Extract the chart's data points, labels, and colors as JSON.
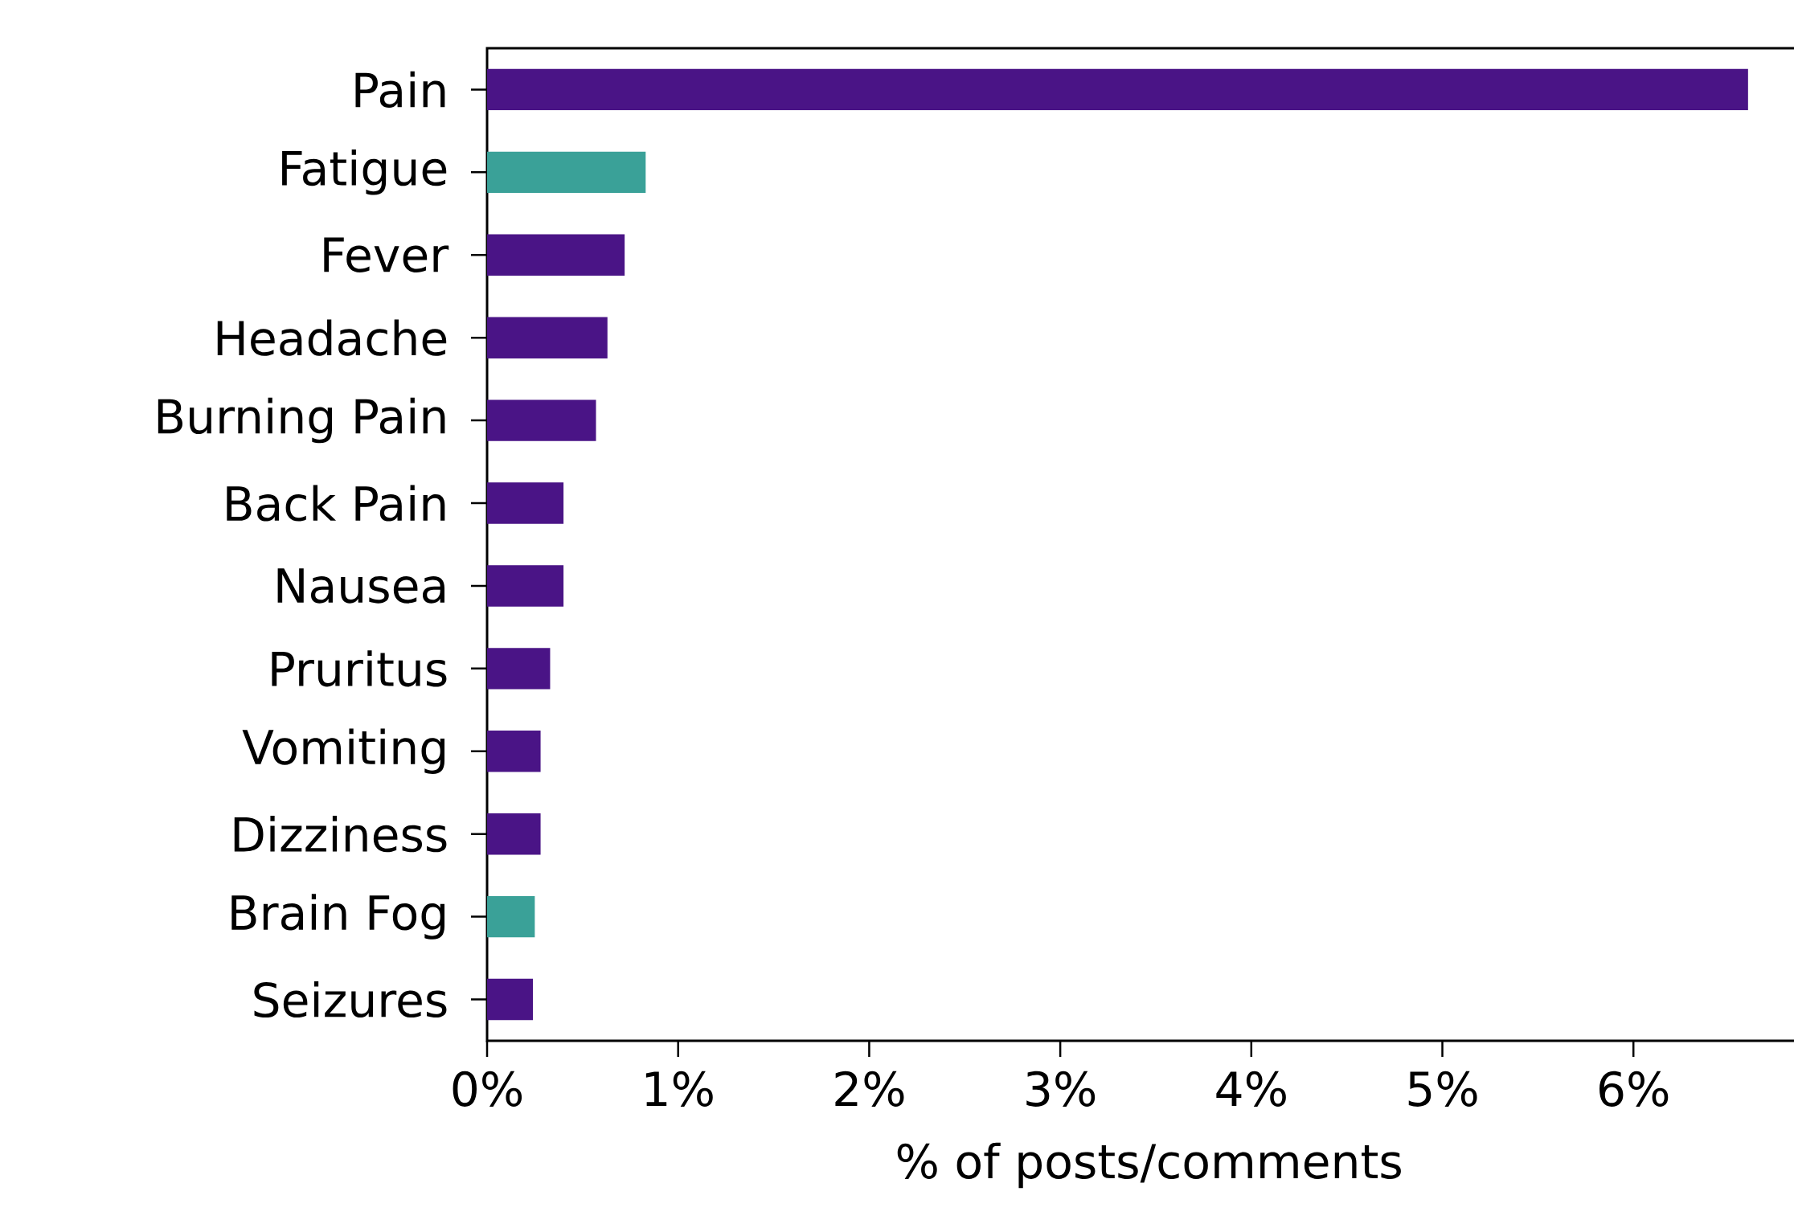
{
  "chart_data": {
    "type": "bar",
    "orientation": "horizontal",
    "xlabel": "% of posts/comments",
    "categories": [
      "Pain",
      "Fatigue",
      "Fever",
      "Headache",
      "Burning Pain",
      "Back Pain",
      "Nausea",
      "Pruritus",
      "Vomiting",
      "Dizziness",
      "Brain Fog",
      "Seizures"
    ],
    "values": [
      6.6,
      0.83,
      0.72,
      0.63,
      0.57,
      0.4,
      0.4,
      0.33,
      0.28,
      0.28,
      0.25,
      0.24
    ],
    "colors": [
      "#4a1486",
      "#3aa198",
      "#4a1486",
      "#4a1486",
      "#4a1486",
      "#4a1486",
      "#4a1486",
      "#4a1486",
      "#4a1486",
      "#4a1486",
      "#3aa198",
      "#4a1486"
    ],
    "xlim": [
      0,
      6.93
    ],
    "xticks": [
      {
        "value": 0,
        "label": "0%"
      },
      {
        "value": 1,
        "label": "1%"
      },
      {
        "value": 2,
        "label": "2%"
      },
      {
        "value": 3,
        "label": "3%"
      },
      {
        "value": 4,
        "label": "4%"
      },
      {
        "value": 5,
        "label": "5%"
      },
      {
        "value": 6,
        "label": "6%"
      }
    ]
  }
}
